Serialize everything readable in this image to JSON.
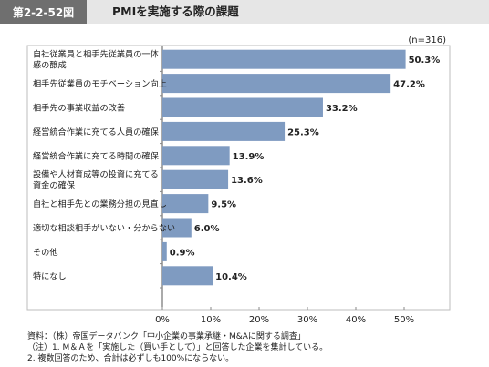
{
  "header": {
    "figure_number": "第2-2-52図",
    "title": "PMIを実施する際の課題"
  },
  "note_n": "(n=316)",
  "chart_data": {
    "type": "bar",
    "orientation": "horizontal",
    "categories": [
      [
        "自社従業員と相手先従業員の一体",
        "感の醸成"
      ],
      [
        "相手先従業員のモチベーション向上"
      ],
      [
        "相手先の事業収益の改善"
      ],
      [
        "経営統合作業に充てる人員の確保"
      ],
      [
        "経営統合作業に充てる時間の確保"
      ],
      [
        "設備や人材育成等の投資に充てる",
        "資金の確保"
      ],
      [
        "自社と相手先との業務分担の見直し"
      ],
      [
        "適切な相談相手がいない・分からない"
      ],
      [
        "その他"
      ],
      [
        "特になし"
      ]
    ],
    "values": [
      50.3,
      47.2,
      33.2,
      25.3,
      13.9,
      13.6,
      9.5,
      6.0,
      0.9,
      10.4
    ],
    "value_labels": [
      "50.3%",
      "47.2%",
      "33.2%",
      "25.3%",
      "13.9%",
      "13.6%",
      "9.5%",
      "6.0%",
      "0.9%",
      "10.4%"
    ],
    "xlim": [
      0,
      60
    ],
    "xticks": [
      0,
      10,
      20,
      30,
      40,
      50
    ],
    "xtick_labels": [
      "0%",
      "10%",
      "20%",
      "30%",
      "40%",
      "50%"
    ],
    "grid": false,
    "bar_color": "#7f9bc1"
  },
  "footnotes": [
    "資料：（株）帝国データバンク「中小企業の事業承継・M&Aに関する調査」",
    "（注）1. M＆Ａを「実施した（買い手として）」と回答した企業を集計している。",
    "2. 複数回答のため、合計は必ずしも100%にならない。"
  ]
}
